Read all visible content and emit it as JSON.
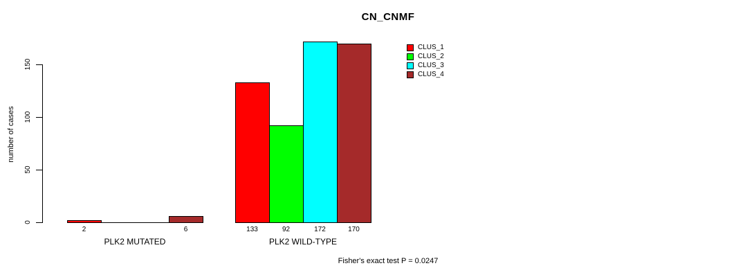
{
  "title": "CN_CNMF",
  "footer": "Fisher's exact test P = 0.0247",
  "chart_data": {
    "type": "bar",
    "title": "CN_CNMF",
    "xlabel": "",
    "ylabel": "number of cases",
    "yticks": [
      0,
      50,
      100,
      150
    ],
    "ylim": [
      0,
      175
    ],
    "grid": false,
    "legend_position": "top-right-inside",
    "categories": [
      "PLK2 MUTATED",
      "PLK2 WILD-TYPE"
    ],
    "series": [
      {
        "name": "CLUS_1",
        "color": "#ff0000",
        "values": [
          2,
          133
        ]
      },
      {
        "name": "CLUS_2",
        "color": "#00ff00",
        "values": [
          0,
          92
        ]
      },
      {
        "name": "CLUS_3",
        "color": "#00ffff",
        "values": [
          0,
          172
        ]
      },
      {
        "name": "CLUS_4",
        "color": "#a52a2a",
        "values": [
          6,
          170
        ]
      }
    ],
    "bar_value_labels": {
      "shown": [
        [
          "2",
          "",
          "",
          "6"
        ],
        [
          "133",
          "92",
          "172",
          "170"
        ]
      ]
    },
    "annotation": "Fisher's exact test P = 0.0247"
  }
}
